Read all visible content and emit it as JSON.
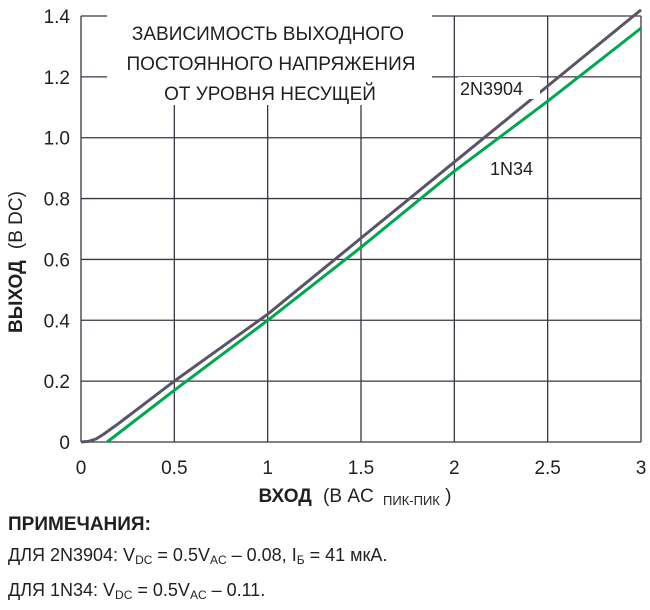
{
  "chart_data": {
    "type": "line",
    "title_lines": [
      "ЗАВИСИМОСТЬ ВЫХОДНОГО",
      "ПОСТОЯННОГО НАПРЯЖЕНИЯ",
      "ОТ УРОВНЯ НЕСУЩЕЙ"
    ],
    "xlabel_bold": "ВХОД",
    "xlabel_rest": "(В AC",
    "xlabel_sub": "ПИК-ПИК",
    "xlabel_close": ")",
    "ylabel_bold": "ВЫХОД",
    "ylabel_rest": "(В DC)",
    "xlim": [
      0,
      3
    ],
    "ylim": [
      0,
      1.4
    ],
    "xticks": [
      "0",
      "0.5",
      "1",
      "1.5",
      "2",
      "2.5",
      "3"
    ],
    "yticks": [
      "0",
      "0.2",
      "0.4",
      "0.6",
      "0.8",
      "1.0",
      "1.2",
      "1.4"
    ],
    "grid": true,
    "series": [
      {
        "name": "2N3904",
        "color": "#5b5464",
        "points": [
          [
            0,
            0
          ],
          [
            0.04,
            0.002
          ],
          [
            0.08,
            0.01
          ],
          [
            0.12,
            0.025
          ],
          [
            0.2,
            0.06
          ],
          [
            0.5,
            0.2
          ],
          [
            1,
            0.42
          ],
          [
            1.5,
            0.67
          ],
          [
            2,
            0.92
          ],
          [
            2.5,
            1.17
          ],
          [
            3,
            1.42
          ]
        ]
      },
      {
        "name": "1N34",
        "color": "#00a650",
        "points": [
          [
            0.14,
            0
          ],
          [
            0.5,
            0.17
          ],
          [
            1,
            0.4
          ],
          [
            1.5,
            0.64
          ],
          [
            2,
            0.89
          ],
          [
            2.5,
            1.12
          ],
          [
            3,
            1.36
          ]
        ]
      }
    ]
  },
  "notes": {
    "heading": "ПРИМЕЧАНИЯ:",
    "line1": {
      "prefix": "ДЛЯ 2N3904: V",
      "sub1": "DC",
      "mid1": " = 0.5V",
      "sub2": "AC",
      "mid2": " – 0.08, I",
      "sub3": "Б",
      "suffix": " = 41 мкА."
    },
    "line2": {
      "prefix": "ДЛЯ 1N34: V",
      "sub1": "DC",
      "mid1": " = 0.5V",
      "sub2": "AC",
      "suffix": " – 0.11."
    }
  }
}
